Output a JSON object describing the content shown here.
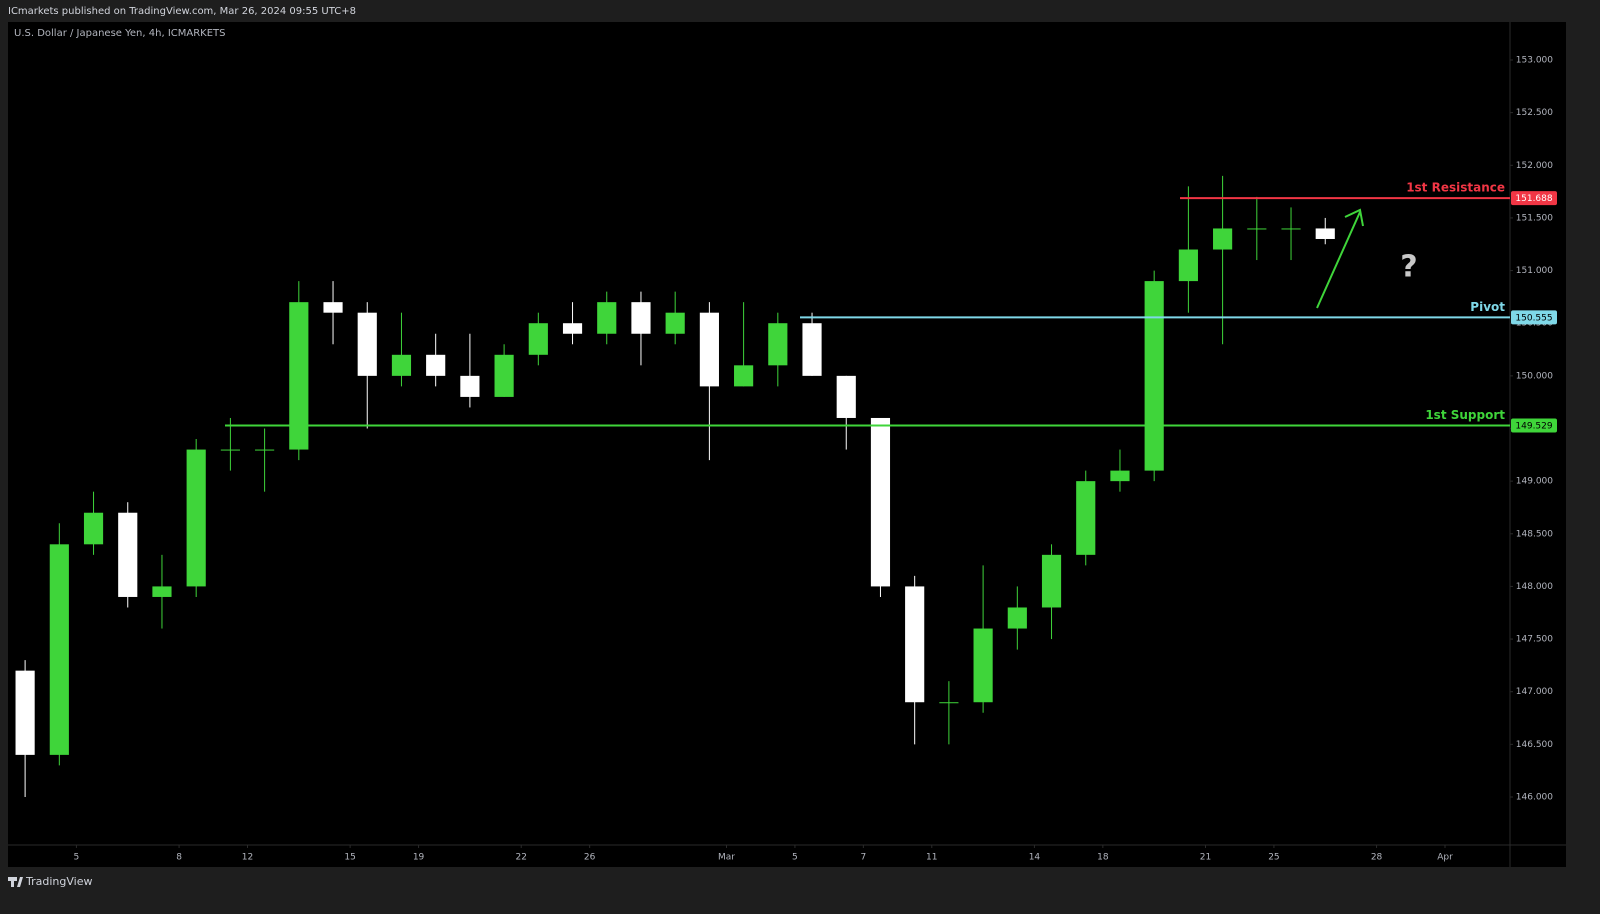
{
  "header": {
    "published": "ICmarkets published on TradingView.com, Mar 26, 2024 09:55 UTC+8"
  },
  "footer": {
    "brand": "TradingView"
  },
  "chart_data": {
    "type": "candlestick",
    "title": "U.S. Dollar / Japanese Yen, 4h, ICMARKETS",
    "open": [
      147.2,
      146.4,
      148.4,
      148.7,
      147.9,
      148.0,
      149.3,
      149.3,
      149.3,
      150.7,
      150.6,
      150.0,
      150.2,
      150.0,
      149.8,
      150.2,
      150.5,
      150.4,
      150.7,
      150.4,
      150.6,
      149.9,
      150.1,
      150.5,
      150.0,
      149.6,
      148.0,
      146.9,
      146.9,
      147.6,
      147.8,
      148.3,
      149.0,
      149.1,
      150.9,
      151.2,
      151.4,
      151.4,
      151.4
    ],
    "high": [
      147.3,
      148.6,
      148.9,
      148.8,
      148.3,
      149.4,
      149.6,
      149.5,
      150.9,
      150.9,
      150.7,
      150.6,
      150.4,
      150.4,
      150.3,
      150.6,
      150.7,
      150.8,
      150.8,
      150.8,
      150.7,
      150.7,
      150.6,
      150.6,
      150.0,
      149.6,
      148.1,
      147.1,
      148.2,
      148.0,
      148.4,
      149.1,
      149.3,
      151.0,
      151.8,
      151.9,
      151.7,
      151.6,
      151.5
    ],
    "low": [
      146.0,
      146.3,
      148.3,
      147.8,
      147.6,
      147.9,
      149.1,
      148.9,
      149.2,
      150.3,
      149.5,
      149.9,
      149.9,
      149.7,
      149.8,
      150.1,
      150.3,
      150.3,
      150.1,
      150.3,
      149.2,
      149.9,
      149.9,
      150.0,
      149.3,
      147.9,
      146.5,
      146.5,
      146.8,
      147.4,
      147.5,
      148.2,
      148.9,
      149.0,
      150.6,
      150.3,
      151.1,
      151.1,
      151.25
    ],
    "close": [
      146.4,
      148.4,
      148.7,
      147.9,
      148.0,
      149.3,
      149.3,
      149.3,
      150.7,
      150.6,
      150.0,
      150.2,
      150.0,
      149.8,
      150.2,
      150.5,
      150.4,
      150.7,
      150.4,
      150.6,
      149.9,
      150.1,
      150.5,
      150.0,
      149.6,
      148.0,
      146.9,
      146.9,
      147.6,
      147.8,
      148.3,
      149.0,
      149.1,
      150.9,
      151.2,
      151.4,
      151.4,
      151.4,
      151.3
    ],
    "up_color": "#3fd53a",
    "down_color": "#ffffff",
    "xlim": [
      0,
      43.9
    ],
    "xticks": [
      {
        "value": 2,
        "label": "5"
      },
      {
        "value": 5,
        "label": "8"
      },
      {
        "value": 7,
        "label": "12"
      },
      {
        "value": 10,
        "label": "15"
      },
      {
        "value": 12,
        "label": "19"
      },
      {
        "value": 15,
        "label": "22"
      },
      {
        "value": 17,
        "label": "26"
      },
      {
        "value": 21,
        "label": "Mar"
      },
      {
        "value": 23,
        "label": "5"
      },
      {
        "value": 25,
        "label": "7"
      },
      {
        "value": 27,
        "label": "11"
      },
      {
        "value": 30,
        "label": "14"
      },
      {
        "value": 32,
        "label": "18"
      },
      {
        "value": 35,
        "label": "21"
      },
      {
        "value": 37,
        "label": "25"
      },
      {
        "value": 40,
        "label": "28"
      },
      {
        "value": 42,
        "label": "Apr"
      }
    ],
    "ylim": [
      145.544,
      153.361
    ],
    "yticks": [
      {
        "value": 146,
        "label": "146.000"
      },
      {
        "value": 146.5,
        "label": "146.500"
      },
      {
        "value": 147,
        "label": "147.000"
      },
      {
        "value": 147.5,
        "label": "147.500"
      },
      {
        "value": 148,
        "label": "148.000"
      },
      {
        "value": 148.5,
        "label": "148.500"
      },
      {
        "value": 149,
        "label": "149.000"
      },
      {
        "value": 149.5,
        "label": "149.500"
      },
      {
        "value": 150,
        "label": "150.000"
      },
      {
        "value": 150.5,
        "label": "150.500"
      },
      {
        "value": 151,
        "label": "151.000"
      },
      {
        "value": 151.5,
        "label": "151.500"
      },
      {
        "value": 152,
        "label": "152.000"
      },
      {
        "value": 152.5,
        "label": "152.500"
      },
      {
        "value": 153,
        "label": "153.000"
      }
    ],
    "levels": [
      {
        "name": "1st Resistance",
        "value": 151.688,
        "color": "#f23645"
      },
      {
        "name": "Pivot",
        "value": 150.555,
        "color": "#7fd8e8"
      },
      {
        "name": "1st Support",
        "value": 149.529,
        "color": "#3fd53a"
      }
    ],
    "annotation": "?"
  }
}
